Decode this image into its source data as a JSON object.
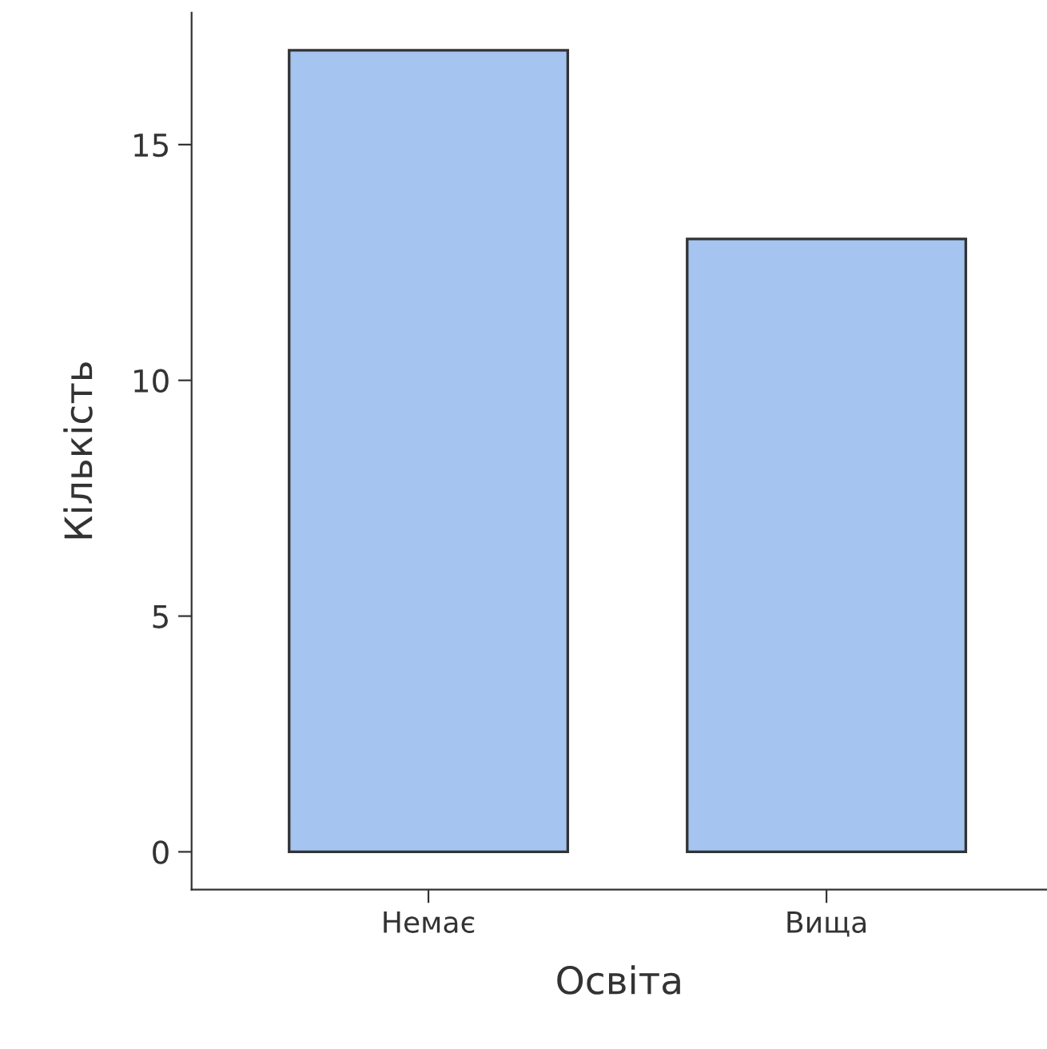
{
  "chart_data": {
    "type": "bar",
    "xlabel": "Освіта",
    "ylabel": "Кількість",
    "categories": [
      "Немає",
      "Вища"
    ],
    "values": [
      17,
      13
    ],
    "color": "#a5c4f0",
    "ylim": [
      -0.8,
      17.8
    ],
    "yticks": [
      0,
      5,
      10,
      15
    ],
    "grid": false,
    "legend": false
  }
}
